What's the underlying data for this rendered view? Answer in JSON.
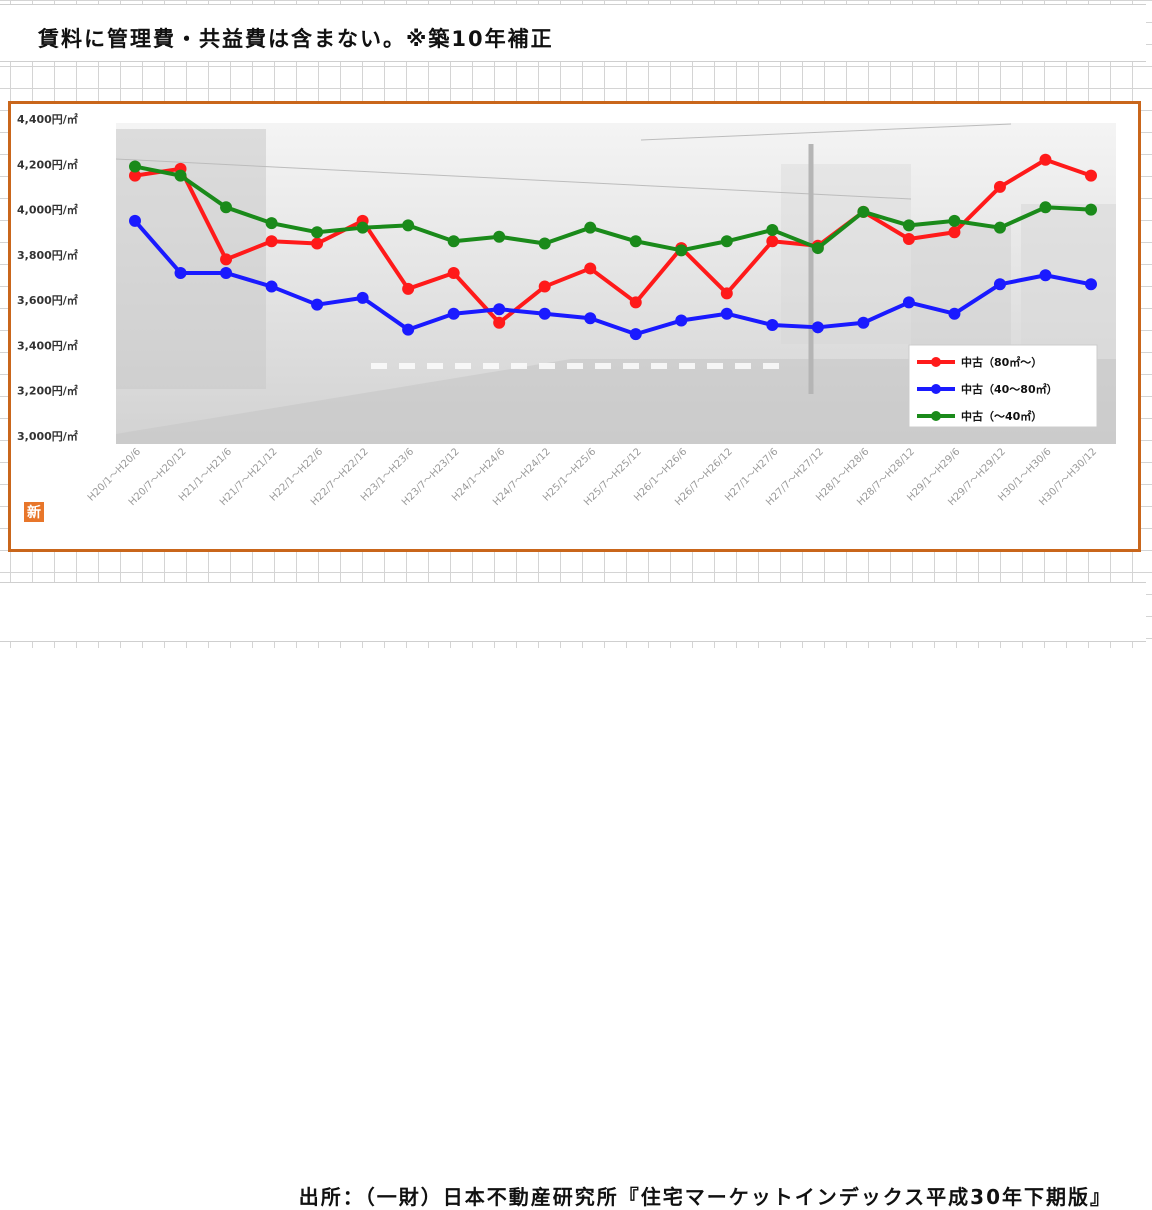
{
  "note": "賃料に管理費・共益費は含まない。※築10年補正",
  "source": "出所：（一財）日本不動産研究所『住宅マーケットインデックス平成30年下期版』",
  "logo_text": "新",
  "chart_data": {
    "type": "line",
    "title": "",
    "xlabel": "",
    "ylabel": "",
    "ylim": [
      3000,
      4400
    ],
    "ytick_labels": [
      "4,400円/㎡",
      "4,200円/㎡",
      "4,000円/㎡",
      "3,800円/㎡",
      "3,600円/㎡",
      "3,400円/㎡",
      "3,200円/㎡",
      "3,000円/㎡"
    ],
    "ytick_values": [
      4400,
      4200,
      4000,
      3800,
      3600,
      3400,
      3200,
      3000
    ],
    "categories": [
      "H20/1～H20/6",
      "H20/7～H20/12",
      "H21/1～H21/6",
      "H21/7～H21/12",
      "H22/1～H22/6",
      "H22/7～H22/12",
      "H23/1～H23/6",
      "H23/7～H23/12",
      "H24/1～H24/6",
      "H24/7～H24/12",
      "H25/1～H25/6",
      "H25/7～H25/12",
      "H26/1～H26/6",
      "H26/7～H26/12",
      "H27/1～H27/6",
      "H27/7～H27/12",
      "H28/1～H28/6",
      "H28/7～H28/12",
      "H29/1～H29/6",
      "H29/7～H29/12",
      "H30/1～H30/6",
      "H30/7～H30/12"
    ],
    "legend_position": "bottom-right",
    "grid": false,
    "series": [
      {
        "name": "中古（80㎡～）",
        "color": "#ff1a1a",
        "values": [
          4150,
          4180,
          3780,
          3860,
          3850,
          3950,
          3650,
          3720,
          3500,
          3660,
          3740,
          3590,
          3830,
          3630,
          3860,
          3840,
          3990,
          3870,
          3900,
          4100,
          4220,
          4150
        ]
      },
      {
        "name": "中古（40～80㎡）",
        "color": "#1a1aff",
        "values": [
          3950,
          3720,
          3720,
          3660,
          3580,
          3610,
          3470,
          3540,
          3560,
          3540,
          3520,
          3450,
          3510,
          3540,
          3490,
          3480,
          3500,
          3590,
          3540,
          3670,
          3710,
          3670
        ]
      },
      {
        "name": "中古（～40㎡）",
        "color": "#1a8a1a",
        "values": [
          4190,
          4150,
          4010,
          3940,
          3900,
          3920,
          3930,
          3860,
          3880,
          3850,
          3920,
          3860,
          3820,
          3860,
          3910,
          3830,
          3990,
          3930,
          3950,
          3920,
          4010,
          4000
        ]
      }
    ]
  }
}
